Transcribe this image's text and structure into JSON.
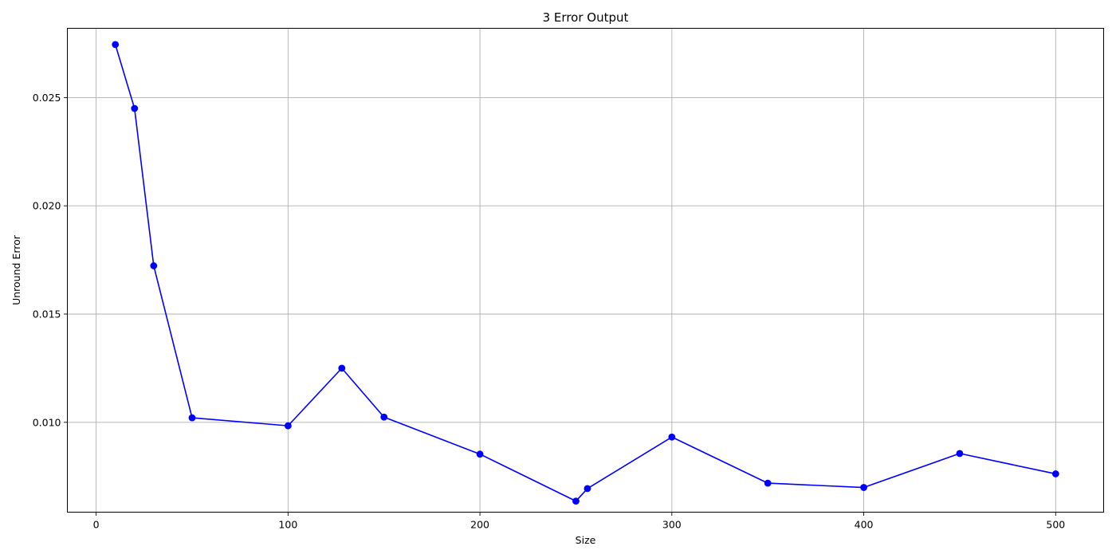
{
  "chart_data": {
    "type": "line",
    "title": "3 Error Output",
    "xlabel": "Size",
    "ylabel": "Unround Error",
    "xlim": [
      -15,
      525
    ],
    "ylim": [
      0.00585,
      0.0282
    ],
    "xticks": [
      0,
      100,
      200,
      300,
      400,
      500
    ],
    "yticks": [
      0.01,
      0.015,
      0.02,
      0.025
    ],
    "xtick_labels": [
      "0",
      "100",
      "200",
      "300",
      "400",
      "500"
    ],
    "ytick_labels": [
      "0.010",
      "0.015",
      "0.020",
      "0.025"
    ],
    "grid": true,
    "legend": "none",
    "series": [
      {
        "color": "#0000ff",
        "marker": "circle",
        "x": [
          10,
          20,
          30,
          50,
          100,
          128,
          150,
          200,
          250,
          256,
          300,
          350,
          400,
          450,
          500
        ],
        "y": [
          0.02745,
          0.0245,
          0.01723,
          0.01021,
          0.00984,
          0.0125,
          0.01024,
          0.00853,
          0.00636,
          0.00694,
          0.00932,
          0.00719,
          0.00699,
          0.00856,
          0.00762
        ]
      }
    ]
  }
}
